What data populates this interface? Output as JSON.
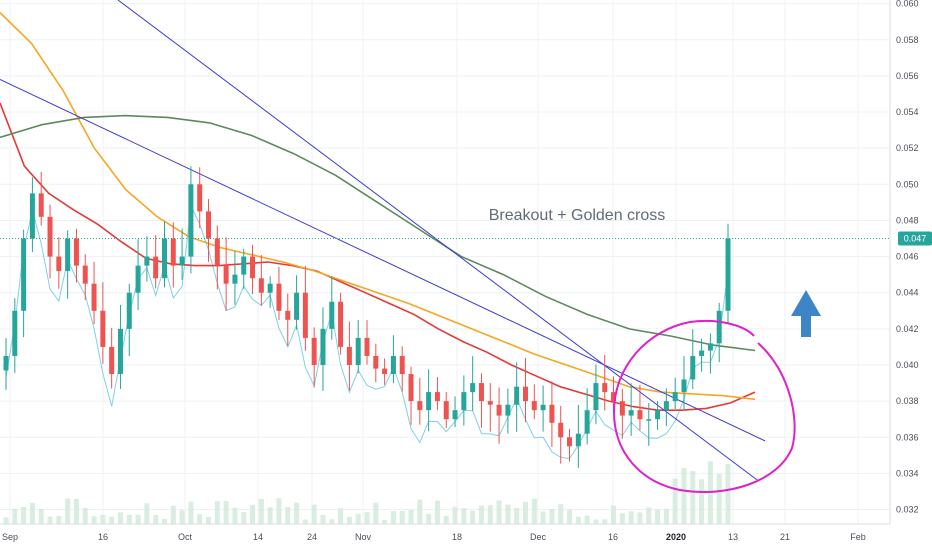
{
  "chart_data": {
    "type": "candlestick",
    "annotation": "Breakout + Golden cross",
    "last_price_label": "0.047",
    "x_tick_labels": [
      "Sep",
      "16",
      "Oct",
      "14",
      "24",
      "Nov",
      "18",
      "Dec",
      "16",
      "2020",
      "13",
      "21",
      "Feb"
    ],
    "y_tick_labels": [
      "0.060",
      "0.058",
      "0.056",
      "0.054",
      "0.052",
      "0.050",
      "0.048",
      "0.046",
      "0.044",
      "0.042",
      "0.040",
      "0.038",
      "0.036",
      "0.034",
      "0.032"
    ],
    "ylim": [
      0.0312,
      0.0602
    ],
    "grid": true,
    "price_path": [
      0.0405,
      0.043,
      0.047,
      0.0495,
      0.0482,
      0.046,
      0.0452,
      0.047,
      0.0455,
      0.0445,
      0.043,
      0.041,
      0.0395,
      0.042,
      0.044,
      0.0455,
      0.046,
      0.0448,
      0.047,
      0.0455,
      0.046,
      0.05,
      0.0485,
      0.047,
      0.0455,
      0.0445,
      0.045,
      0.046,
      0.0448,
      0.044,
      0.0445,
      0.043,
      0.0425,
      0.044,
      0.0415,
      0.04,
      0.042,
      0.0435,
      0.041,
      0.04,
      0.0415,
      0.0405,
      0.0398,
      0.0395,
      0.0405,
      0.0395,
      0.038,
      0.0375,
      0.0385,
      0.038,
      0.037,
      0.0375,
      0.0385,
      0.039,
      0.038,
      0.0378,
      0.0372,
      0.0378,
      0.0388,
      0.038,
      0.0375,
      0.0378,
      0.0368,
      0.036,
      0.0355,
      0.0362,
      0.0375,
      0.039,
      0.0385,
      0.038,
      0.0372,
      0.0375,
      0.037,
      0.037,
      0.0375,
      0.038,
      0.0385,
      0.0392,
      0.0405,
      0.0408,
      0.0412,
      0.043,
      0.047
    ],
    "series": [
      {
        "type": "ma",
        "color": "#e53935",
        "values": [
          0.0545,
          0.051,
          0.0495,
          0.0486,
          0.0478,
          0.0468,
          0.0459,
          0.0456,
          0.0455,
          0.0455,
          0.0456,
          0.0457,
          0.0455,
          0.0452,
          0.0446,
          0.044,
          0.0434,
          0.0428,
          0.042,
          0.0413,
          0.0407,
          0.04,
          0.0394,
          0.0388,
          0.0384,
          0.038,
          0.0377,
          0.0375,
          0.0375,
          0.0376,
          0.0379,
          0.0385
        ]
      },
      {
        "type": "ma",
        "color": "#f5a623",
        "values": [
          0.0595,
          0.0578,
          0.0552,
          0.052,
          0.0497,
          0.0482,
          0.0471,
          0.0465,
          0.0461,
          0.0457,
          0.0452,
          0.0446,
          0.044,
          0.0434,
          0.0427,
          0.042,
          0.0413,
          0.0406,
          0.04,
          0.0394,
          0.0388,
          0.0385,
          0.0384,
          0.0383,
          0.0381
        ]
      },
      {
        "type": "ma",
        "color": "#5d8a5d",
        "values": [
          0.0526,
          0.0533,
          0.0537,
          0.0538,
          0.0537,
          0.0534,
          0.0527,
          0.0517,
          0.0505,
          0.049,
          0.0475,
          0.046,
          0.045,
          0.0438,
          0.0428,
          0.042,
          0.0416,
          0.0411,
          0.0408
        ]
      },
      {
        "type": "trendline",
        "color": "#3b3bd4",
        "from": [
          0.0602,
          0.0336
        ]
      },
      {
        "type": "trendline",
        "color": "#3b3bd4",
        "from": [
          0.0558,
          0.0358
        ]
      }
    ],
    "colors": {
      "up": "#26a69a",
      "down": "#ef5350",
      "ma_red": "#e53935",
      "ma_orange": "#f5a623",
      "ma_green": "#5d8a5d",
      "trendline": "#3b3bd4",
      "bollinger": "#7fd0e8",
      "circle": "#e020c8",
      "arrow": "#3d85c6",
      "volume": "#cfe8d8",
      "price_tag": "#26a69a"
    }
  }
}
